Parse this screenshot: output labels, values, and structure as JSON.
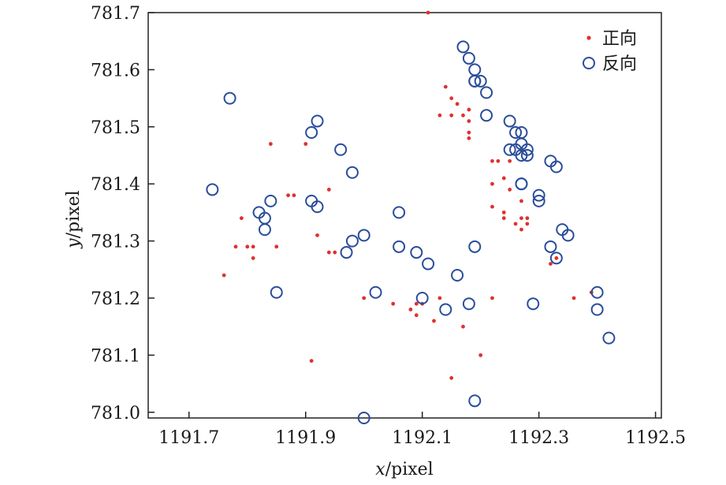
{
  "chart_data": {
    "type": "scatter",
    "title": "",
    "xlabel": {
      "italic": "x",
      "rest": "/pixel"
    },
    "ylabel": {
      "italic": "y",
      "rest": "/pixel"
    },
    "xlim": [
      1191.63,
      1192.51
    ],
    "ylim": [
      780.99,
      781.7
    ],
    "xticks": [
      1191.7,
      1191.9,
      1192.1,
      1192.3,
      1192.5
    ],
    "xtick_labels": [
      "1191.7",
      "1191.9",
      "1192.1",
      "1192.3",
      "1192.5"
    ],
    "yticks": [
      781.0,
      781.1,
      781.2,
      781.3,
      781.4,
      781.5,
      781.6,
      781.7
    ],
    "ytick_labels": [
      "781.0",
      "781.1",
      "781.2",
      "781.3",
      "781.4",
      "781.5",
      "781.6",
      "781.7"
    ],
    "grid": false,
    "legend_position": "top-right",
    "series": [
      {
        "name": "正向",
        "marker": "dot",
        "color": "#e03030",
        "points": [
          [
            1192.11,
            781.7
          ],
          [
            1192.14,
            781.57
          ],
          [
            1192.15,
            781.55
          ],
          [
            1192.16,
            781.54
          ],
          [
            1192.13,
            781.52
          ],
          [
            1192.15,
            781.52
          ],
          [
            1192.17,
            781.52
          ],
          [
            1192.18,
            781.53
          ],
          [
            1192.18,
            781.51
          ],
          [
            1192.18,
            781.49
          ],
          [
            1192.18,
            781.48
          ],
          [
            1191.84,
            781.47
          ],
          [
            1191.9,
            781.47
          ],
          [
            1192.22,
            781.44
          ],
          [
            1192.23,
            781.44
          ],
          [
            1192.25,
            781.44
          ],
          [
            1192.22,
            781.4
          ],
          [
            1192.24,
            781.41
          ],
          [
            1192.25,
            781.39
          ],
          [
            1192.27,
            781.37
          ],
          [
            1191.94,
            781.39
          ],
          [
            1191.87,
            781.38
          ],
          [
            1191.88,
            781.38
          ],
          [
            1192.22,
            781.36
          ],
          [
            1192.24,
            781.35
          ],
          [
            1192.24,
            781.34
          ],
          [
            1192.26,
            781.33
          ],
          [
            1192.27,
            781.34
          ],
          [
            1192.28,
            781.34
          ],
          [
            1192.28,
            781.33
          ],
          [
            1192.27,
            781.32
          ],
          [
            1191.79,
            781.34
          ],
          [
            1191.92,
            781.31
          ],
          [
            1191.78,
            781.29
          ],
          [
            1191.8,
            781.29
          ],
          [
            1191.81,
            781.29
          ],
          [
            1191.81,
            781.27
          ],
          [
            1191.85,
            781.29
          ],
          [
            1191.94,
            781.28
          ],
          [
            1191.95,
            781.28
          ],
          [
            1192.33,
            781.27
          ],
          [
            1192.32,
            781.26
          ],
          [
            1191.76,
            781.24
          ],
          [
            1192.0,
            781.2
          ],
          [
            1192.05,
            781.19
          ],
          [
            1192.09,
            781.19
          ],
          [
            1192.1,
            781.19
          ],
          [
            1192.08,
            781.18
          ],
          [
            1192.09,
            781.17
          ],
          [
            1192.13,
            781.2
          ],
          [
            1192.22,
            781.2
          ],
          [
            1192.36,
            781.2
          ],
          [
            1192.39,
            781.21
          ],
          [
            1192.12,
            781.16
          ],
          [
            1192.17,
            781.15
          ],
          [
            1191.91,
            781.09
          ],
          [
            1192.2,
            781.1
          ],
          [
            1192.15,
            781.06
          ]
        ]
      },
      {
        "name": "反向",
        "marker": "circle",
        "color": "#2a4d9b",
        "points": [
          [
            1192.17,
            781.64
          ],
          [
            1192.18,
            781.62
          ],
          [
            1192.19,
            781.6
          ],
          [
            1192.19,
            781.58
          ],
          [
            1192.2,
            781.58
          ],
          [
            1192.19,
            781.58
          ],
          [
            1192.21,
            781.56
          ],
          [
            1191.77,
            781.55
          ],
          [
            1191.92,
            781.51
          ],
          [
            1191.91,
            781.49
          ],
          [
            1192.21,
            781.52
          ],
          [
            1192.25,
            781.51
          ],
          [
            1192.26,
            781.49
          ],
          [
            1192.27,
            781.49
          ],
          [
            1192.27,
            781.47
          ],
          [
            1192.26,
            781.46
          ],
          [
            1192.25,
            781.46
          ],
          [
            1192.28,
            781.46
          ],
          [
            1192.28,
            781.45
          ],
          [
            1192.27,
            781.45
          ],
          [
            1191.96,
            781.46
          ],
          [
            1192.32,
            781.44
          ],
          [
            1192.33,
            781.43
          ],
          [
            1191.98,
            781.42
          ],
          [
            1192.27,
            781.4
          ],
          [
            1192.27,
            781.4
          ],
          [
            1192.3,
            781.38
          ],
          [
            1192.3,
            781.37
          ],
          [
            1191.74,
            781.39
          ],
          [
            1191.84,
            781.37
          ],
          [
            1191.91,
            781.37
          ],
          [
            1191.92,
            781.36
          ],
          [
            1191.82,
            781.35
          ],
          [
            1191.83,
            781.34
          ],
          [
            1192.06,
            781.35
          ],
          [
            1192.34,
            781.32
          ],
          [
            1192.35,
            781.31
          ],
          [
            1191.83,
            781.32
          ],
          [
            1192.0,
            781.31
          ],
          [
            1191.98,
            781.3
          ],
          [
            1191.97,
            781.28
          ],
          [
            1192.06,
            781.29
          ],
          [
            1192.09,
            781.28
          ],
          [
            1192.19,
            781.29
          ],
          [
            1192.32,
            781.29
          ],
          [
            1192.33,
            781.27
          ],
          [
            1192.11,
            781.26
          ],
          [
            1192.16,
            781.24
          ],
          [
            1191.85,
            781.21
          ],
          [
            1192.02,
            781.21
          ],
          [
            1192.1,
            781.2
          ],
          [
            1192.29,
            781.19
          ],
          [
            1192.18,
            781.19
          ],
          [
            1192.14,
            781.18
          ],
          [
            1192.4,
            781.21
          ],
          [
            1192.4,
            781.18
          ],
          [
            1192.42,
            781.13
          ],
          [
            1192.19,
            781.02
          ],
          [
            1192.0,
            780.99
          ]
        ]
      }
    ]
  }
}
